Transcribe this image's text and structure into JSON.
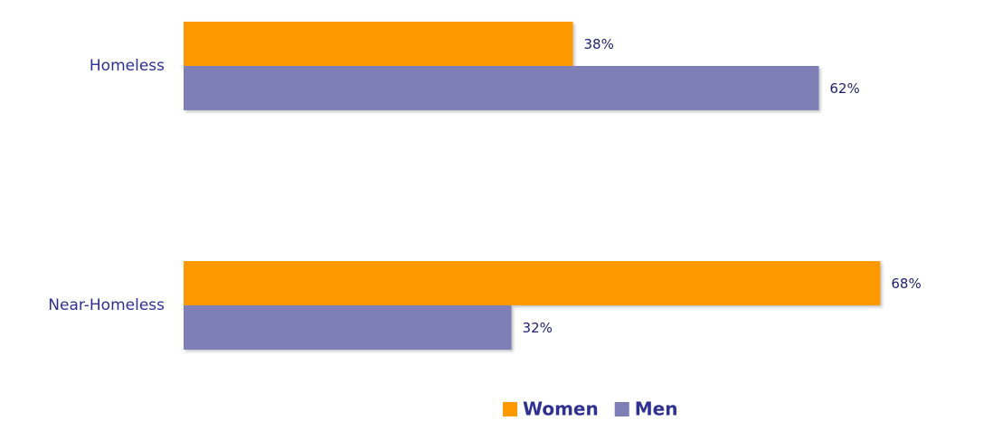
{
  "chart_data": {
    "type": "bar",
    "orientation": "horizontal",
    "categories": [
      "Homeless",
      "Near-Homeless"
    ],
    "series": [
      {
        "name": "Women",
        "color": "#ff9900",
        "values": [
          38,
          68
        ],
        "value_labels": [
          "38%",
          "68%"
        ]
      },
      {
        "name": "Men",
        "color": "#7f7fb8",
        "values": [
          62,
          32
        ],
        "value_labels": [
          "62%",
          "32%"
        ]
      }
    ],
    "xlim": [
      0,
      79
    ],
    "legend": "bottom"
  }
}
